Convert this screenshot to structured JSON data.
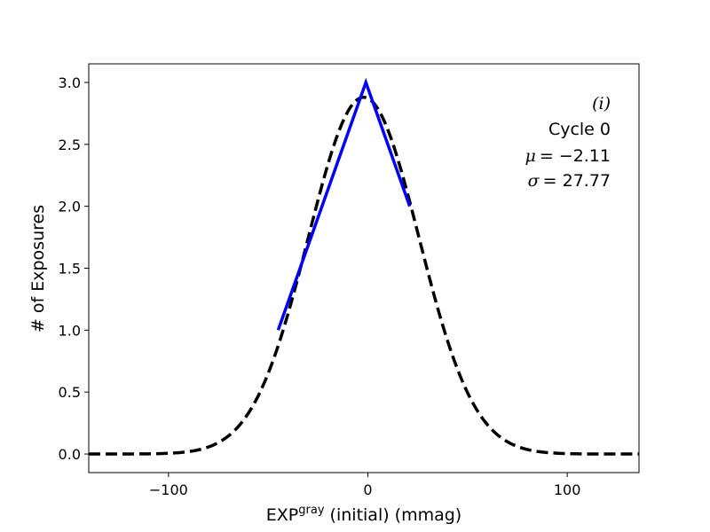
{
  "chart_data": {
    "type": "line",
    "title": "",
    "xlabel": {
      "main": "EXP",
      "superscript": "gray",
      "rest": " (initial) (mmag)"
    },
    "ylabel": "# of Exposures",
    "xlim": [
      -140,
      136
    ],
    "ylim": [
      -0.15,
      3.15
    ],
    "xticks": [
      -100,
      0,
      100
    ],
    "xtick_labels": [
      "−100",
      "0",
      "100"
    ],
    "yticks": [
      0.0,
      0.5,
      1.0,
      1.5,
      2.0,
      2.5,
      3.0
    ],
    "ytick_labels": [
      "0.0",
      "0.5",
      "1.0",
      "1.5",
      "2.0",
      "2.5",
      "3.0"
    ],
    "grid": false,
    "series": [
      {
        "kind": "histogram-line",
        "color": "#0000ff",
        "x": [
          -45,
          -1,
          21
        ],
        "y": [
          1.0,
          3.0,
          2.0
        ]
      },
      {
        "kind": "gaussian-fit",
        "color": "#000000",
        "dashed": true,
        "mu": -2.11,
        "sigma": 27.77,
        "amplitude": 2.88
      }
    ],
    "annotations": {
      "panel": "(i)",
      "cycle": "Cycle 0",
      "mu_label": "μ",
      "mu_value": "= −2.11",
      "sigma_label": "σ",
      "sigma_value": "= 27.77"
    }
  }
}
